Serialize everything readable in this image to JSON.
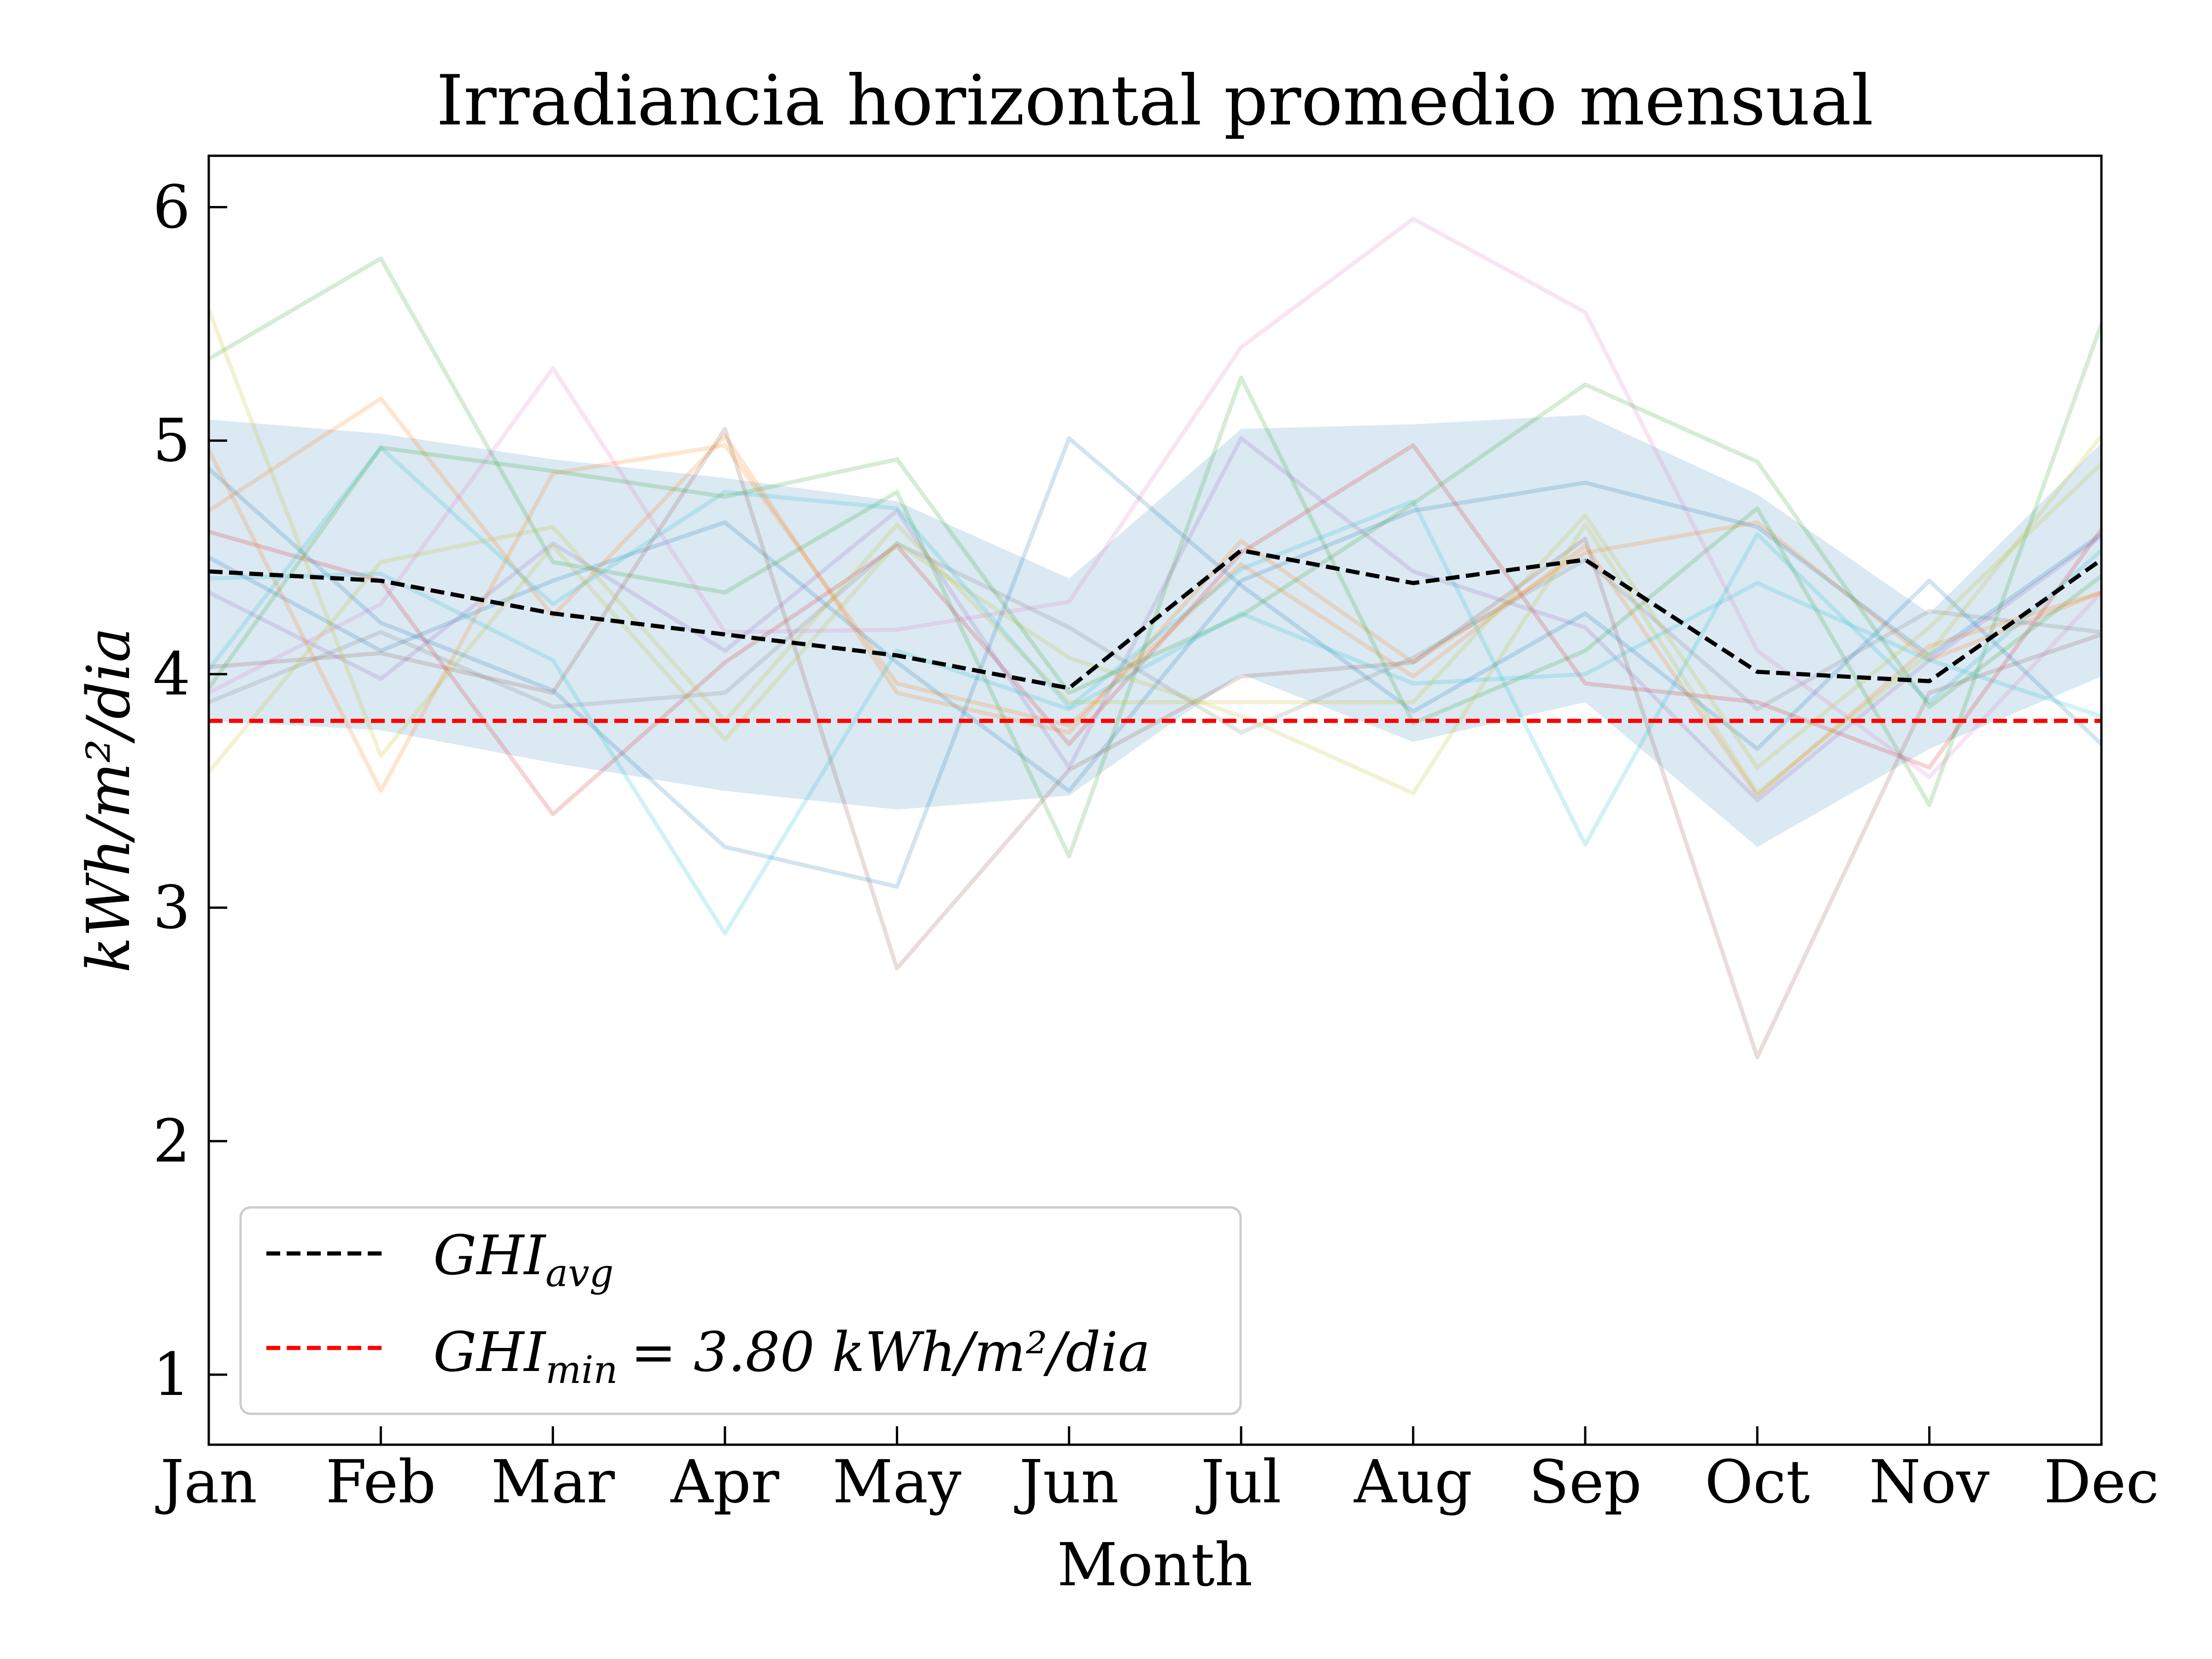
{
  "chart_data": {
    "type": "line",
    "title": "Irradiancia horizontal promedio mensual",
    "xlabel": "Month",
    "ylabel": "kWh/m²/dia",
    "categories": [
      "Jan",
      "Feb",
      "Mar",
      "Apr",
      "May",
      "Jun",
      "Jul",
      "Aug",
      "Sep",
      "Oct",
      "Nov",
      "Dec"
    ],
    "ylim": [
      0.7,
      6.22
    ],
    "yticks": [
      1,
      2,
      3,
      4,
      5,
      6
    ],
    "grid": false,
    "legend_position": "lower-left",
    "colors": {
      "avg": "#000000",
      "min": "#ff0000",
      "band": "#cfe2ef"
    },
    "series": [
      {
        "name": "GHI_avg",
        "legend_main": "GHI",
        "legend_sub": "avg",
        "style": "dashed",
        "color": "#000000",
        "values": [
          4.44,
          4.4,
          4.26,
          4.17,
          4.08,
          3.94,
          4.53,
          4.39,
          4.49,
          4.01,
          3.97,
          4.49
        ]
      }
    ],
    "threshold": {
      "name": "GHI_min",
      "legend_main": "GHI",
      "legend_sub": "min",
      "legend_rest": "= 3.80 kWh/m²/dia",
      "value": 3.8,
      "style": "dashed",
      "color": "#ff0000"
    },
    "band": {
      "upper": [
        5.09,
        5.03,
        4.92,
        4.84,
        4.74,
        4.41,
        5.05,
        5.07,
        5.11,
        4.77,
        4.26,
        4.99
      ],
      "lower": [
        3.8,
        3.76,
        3.62,
        3.5,
        3.42,
        3.48,
        4.0,
        3.71,
        3.88,
        3.26,
        3.68,
        3.99
      ]
    },
    "background_series": [
      {
        "color": "#1f77b4",
        "values": [
          4.5,
          4.1,
          4.4,
          4.65,
          4.05,
          3.5,
          4.4,
          4.7,
          4.82,
          4.63,
          4.08,
          4.6
        ]
      },
      {
        "color": "#ff7f0e",
        "values": [
          4.7,
          5.18,
          4.25,
          5.02,
          3.92,
          3.75,
          4.57,
          4.05,
          4.52,
          4.65,
          4.06,
          4.35
        ]
      },
      {
        "color": "#2ca02c",
        "values": [
          5.35,
          5.78,
          4.48,
          4.35,
          4.78,
          3.22,
          5.27,
          3.79,
          4.1,
          4.71,
          3.44,
          5.5
        ]
      },
      {
        "color": "#d62728",
        "values": [
          4.61,
          4.4,
          3.4,
          4.05,
          4.55,
          3.7,
          4.52,
          4.98,
          3.96,
          3.88,
          3.6,
          4.62
        ]
      },
      {
        "color": "#9467bd",
        "values": [
          4.35,
          3.98,
          4.56,
          4.1,
          4.7,
          3.6,
          5.01,
          4.44,
          4.2,
          3.46,
          4.06,
          4.59
        ]
      },
      {
        "color": "#8c564b",
        "values": [
          4.03,
          4.09,
          3.92,
          5.05,
          2.74,
          3.59,
          3.99,
          4.05,
          4.58,
          2.36,
          3.92,
          4.17
        ]
      },
      {
        "color": "#e377c2",
        "values": [
          3.92,
          4.3,
          5.31,
          4.18,
          4.19,
          4.31,
          5.4,
          5.95,
          5.55,
          4.1,
          3.56,
          4.35
        ]
      },
      {
        "color": "#7f7f7f",
        "values": [
          3.88,
          4.18,
          3.86,
          3.92,
          4.56,
          4.2,
          3.75,
          4.07,
          4.49,
          3.85,
          4.27,
          4.18
        ]
      },
      {
        "color": "#bcbd22",
        "values": [
          5.56,
          3.65,
          4.55,
          3.72,
          4.56,
          4.07,
          3.82,
          3.49,
          4.64,
          3.49,
          4.09,
          5.02
        ]
      },
      {
        "color": "#17becf",
        "values": [
          4.02,
          4.97,
          4.3,
          4.78,
          4.71,
          3.86,
          4.45,
          4.74,
          3.27,
          4.6,
          3.88,
          4.53
        ]
      },
      {
        "color": "#1f77b4",
        "values": [
          4.88,
          4.22,
          3.93,
          3.26,
          3.09,
          5.01,
          4.38,
          3.84,
          4.26,
          3.68,
          4.4,
          3.7
        ]
      },
      {
        "color": "#2ca02c",
        "values": [
          3.94,
          4.97,
          4.87,
          4.76,
          4.92,
          3.92,
          4.25,
          4.73,
          5.24,
          4.91,
          3.86,
          4.42
        ]
      },
      {
        "color": "#ff7f0e",
        "values": [
          4.96,
          3.5,
          4.86,
          4.98,
          3.96,
          3.78,
          4.47,
          3.99,
          4.55,
          3.48,
          4.12,
          4.35
        ]
      },
      {
        "color": "#17becf",
        "values": [
          4.41,
          4.43,
          4.06,
          2.89,
          4.1,
          3.85,
          4.26,
          3.96,
          4.0,
          4.39,
          4.06,
          3.82
        ]
      },
      {
        "color": "#bcbd22",
        "values": [
          3.58,
          4.48,
          4.63,
          3.8,
          4.64,
          3.88,
          3.88,
          3.88,
          4.68,
          3.6,
          4.2,
          4.9
        ]
      }
    ]
  }
}
